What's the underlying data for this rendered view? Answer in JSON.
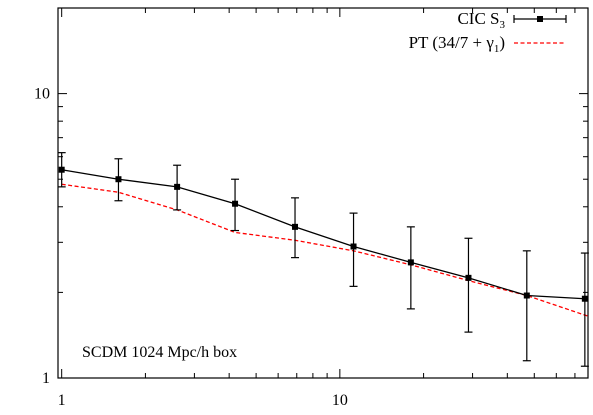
{
  "chart_data": {
    "type": "line",
    "xscale": "log",
    "yscale": "log",
    "xlim": [
      0.97,
      78
    ],
    "ylim": [
      1,
      20
    ],
    "x_ticks": [
      1,
      10
    ],
    "x_tick_labels": [
      "1",
      "10"
    ],
    "y_ticks": [
      1,
      10
    ],
    "y_tick_labels": [
      "1",
      "10"
    ],
    "grid": false,
    "legend_position": "top-right",
    "annotation": "SCDM 1024 Mpc/h box",
    "series": [
      {
        "name": "CIC S3",
        "legend_main": "CIC S",
        "legend_sub": "3",
        "style": "solid-square-errorbars",
        "color": "#000000",
        "x": [
          1.0,
          1.6,
          2.6,
          4.2,
          6.9,
          11.2,
          18.0,
          29.0,
          47.0,
          76.0
        ],
        "y": [
          5.4,
          5.0,
          4.7,
          4.1,
          3.4,
          2.9,
          2.55,
          2.25,
          1.95,
          1.9
        ],
        "yerr_low": [
          4.7,
          4.2,
          3.9,
          3.3,
          2.65,
          2.1,
          1.75,
          1.45,
          1.15,
          1.1
        ],
        "yerr_high": [
          6.2,
          5.9,
          5.6,
          5.0,
          4.3,
          3.8,
          3.4,
          3.1,
          2.8,
          2.75
        ]
      },
      {
        "name": "PT (34/7 + γ1)",
        "legend_main": "PT (34/7 + γ",
        "legend_sub": "1",
        "legend_tail": ")",
        "style": "dashed",
        "color": "#ff0000",
        "x": [
          1.0,
          1.6,
          2.6,
          4.2,
          6.9,
          11.2,
          18.0,
          29.0,
          47.0,
          78.0
        ],
        "y": [
          4.8,
          4.5,
          3.9,
          3.25,
          3.05,
          2.8,
          2.5,
          2.2,
          1.95,
          1.65
        ]
      }
    ]
  }
}
